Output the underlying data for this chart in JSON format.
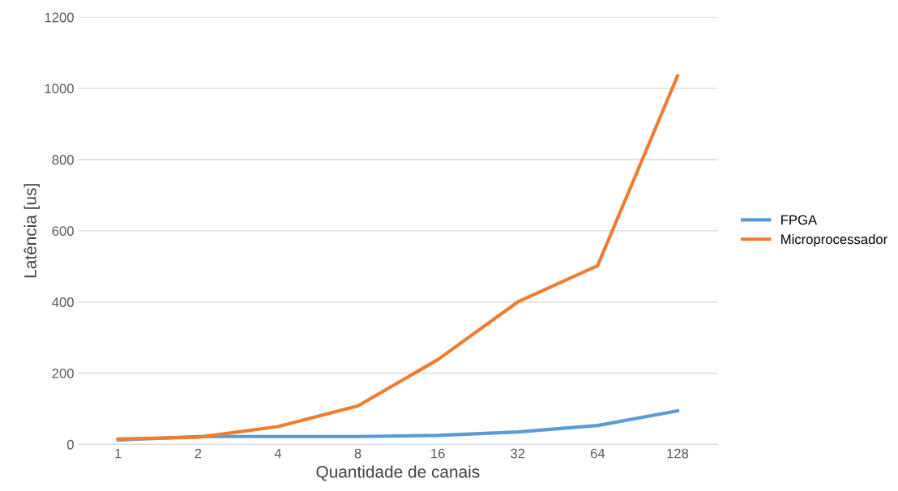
{
  "chart_data": {
    "type": "line",
    "xlabel": "Quantidade de canais",
    "ylabel": "Latência [us]",
    "categories": [
      "1",
      "2",
      "4",
      "8",
      "16",
      "32",
      "64",
      "128"
    ],
    "series": [
      {
        "name": "FPGA",
        "color": "#5b9bd5",
        "values": [
          12,
          22,
          22,
          22,
          25,
          35,
          53,
          94
        ]
      },
      {
        "name": "Microprocessador",
        "color": "#ed7d31",
        "values": [
          15,
          20,
          50,
          108,
          238,
          400,
          502,
          1035
        ]
      }
    ],
    "ylim": [
      0,
      1200
    ],
    "yticks": [
      0,
      200,
      400,
      600,
      800,
      1000,
      1200
    ],
    "grid": "y",
    "legend": "right",
    "marker": "none",
    "line_style": "solid"
  }
}
